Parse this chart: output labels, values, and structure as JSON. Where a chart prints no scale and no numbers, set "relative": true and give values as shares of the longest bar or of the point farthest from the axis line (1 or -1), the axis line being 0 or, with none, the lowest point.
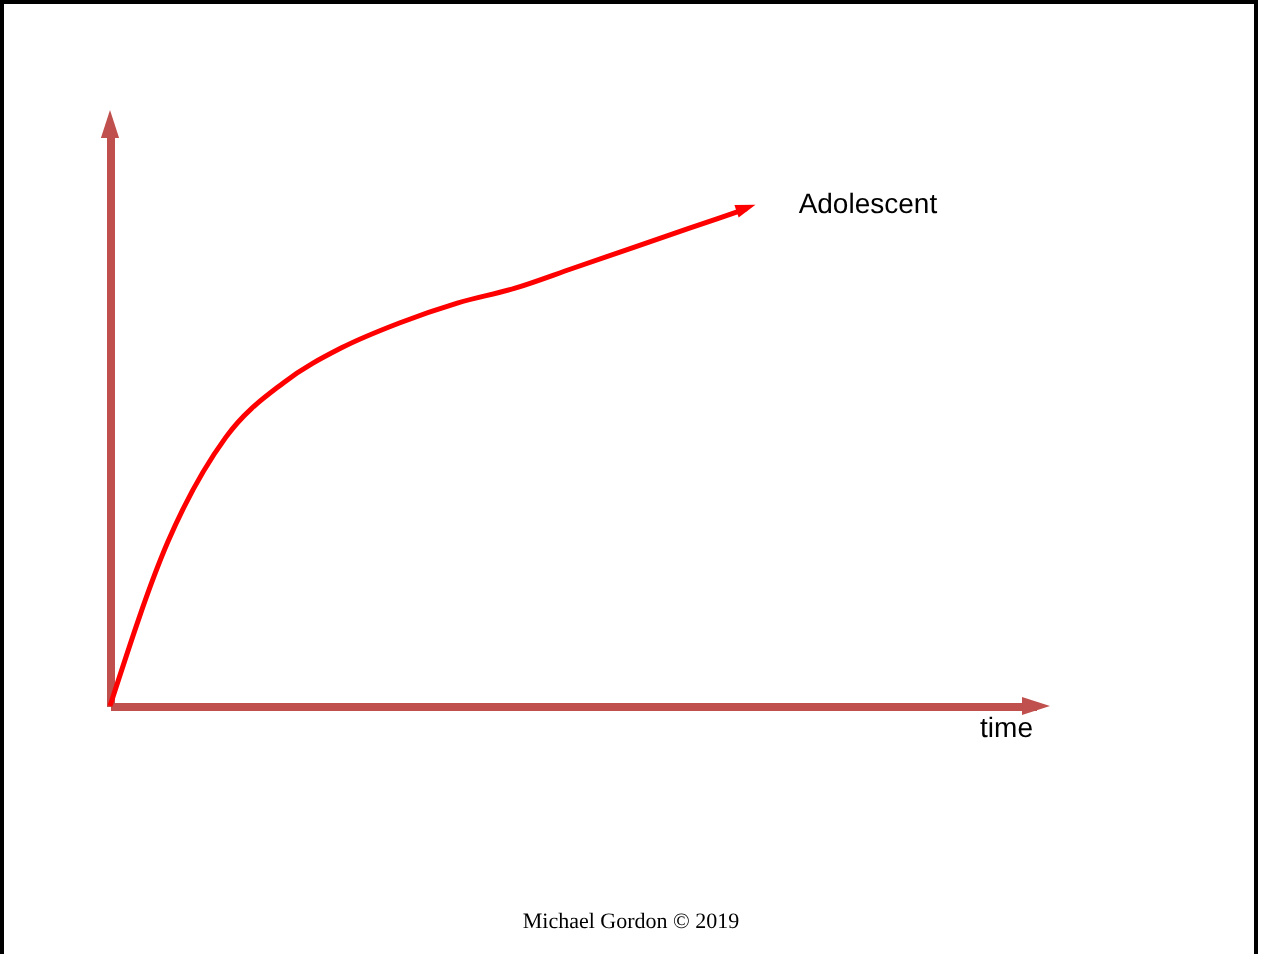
{
  "chart_data": {
    "type": "line",
    "relative": true,
    "xlabel": "time",
    "categories": [
      null,
      null,
      null,
      null,
      null,
      null,
      null,
      null,
      null,
      null,
      null,
      null,
      null,
      null,
      null,
      null,
      null
    ],
    "series": [
      {
        "name": "Adolescent",
        "color": "#ff0000",
        "values": [
          0,
          0.33,
          0.54,
          0.65,
          0.72,
          0.77,
          0.81,
          0.84,
          0.88,
          0.92,
          0.96,
          1,
          null,
          null,
          null,
          null,
          null
        ]
      }
    ],
    "annotations": [
      "Michael Gordon © 2019"
    ]
  }
}
